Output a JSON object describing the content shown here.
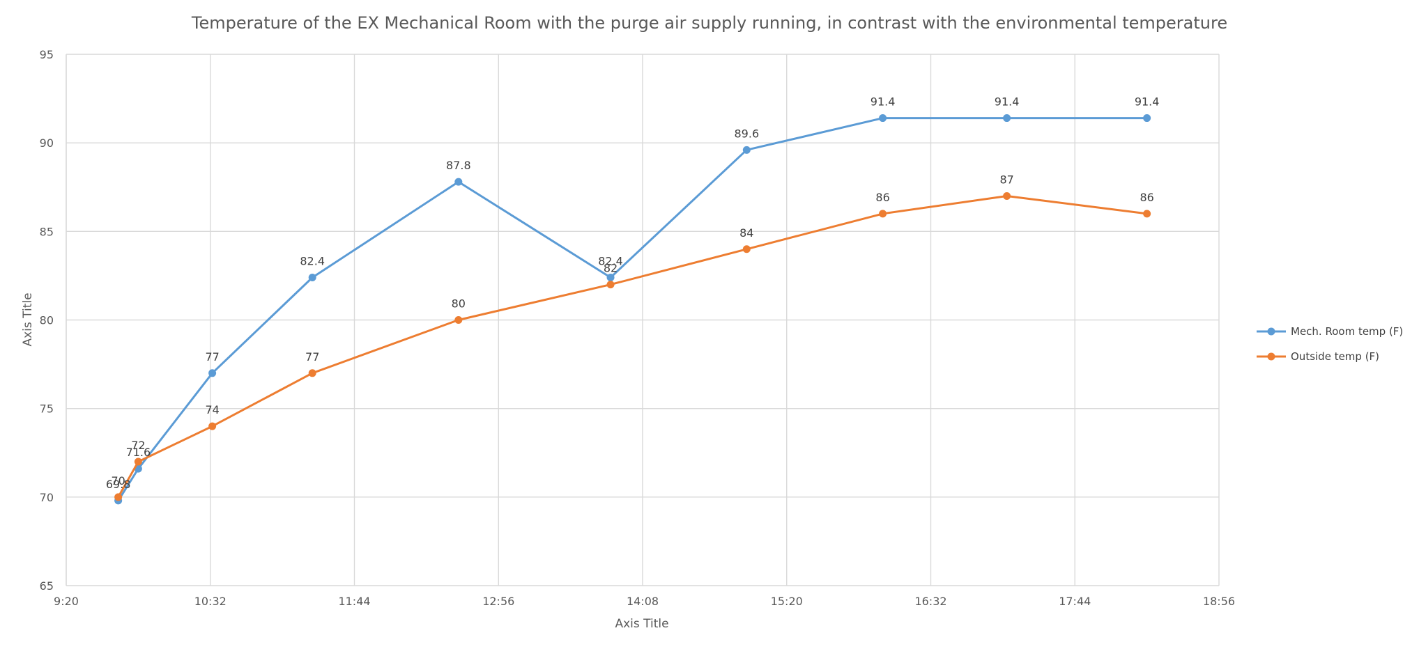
{
  "chart_data": {
    "type": "line",
    "title": "Temperature of the EX Mechanical Room with the purge air supply running, in contrast with the environmental temperature",
    "xlabel": "Axis Title",
    "ylabel": "Axis Title",
    "x_ticks": [
      "9:20",
      "10:32",
      "11:44",
      "12:56",
      "14:08",
      "15:20",
      "16:32",
      "17:44",
      "18:56"
    ],
    "xlim": [
      "9:20",
      "18:56"
    ],
    "y_ticks": [
      65,
      70,
      75,
      80,
      85,
      90,
      95
    ],
    "ylim": [
      65,
      95
    ],
    "grid": true,
    "legend_position": "right",
    "x": [
      "9:46",
      "9:56",
      "10:33",
      "11:23",
      "12:36",
      "13:52",
      "15:00",
      "16:08",
      "17:10",
      "18:20"
    ],
    "series": [
      {
        "name": "Mech. Room temp (F)",
        "color": "#5b9bd5",
        "values": [
          69.8,
          71.6,
          77,
          82.4,
          87.8,
          82.4,
          89.6,
          91.4,
          91.4,
          91.4
        ]
      },
      {
        "name": "Outside temp (F)",
        "color": "#ed7d31",
        "values": [
          70,
          72,
          74,
          77,
          80,
          82,
          84,
          86,
          87,
          86
        ]
      }
    ]
  }
}
